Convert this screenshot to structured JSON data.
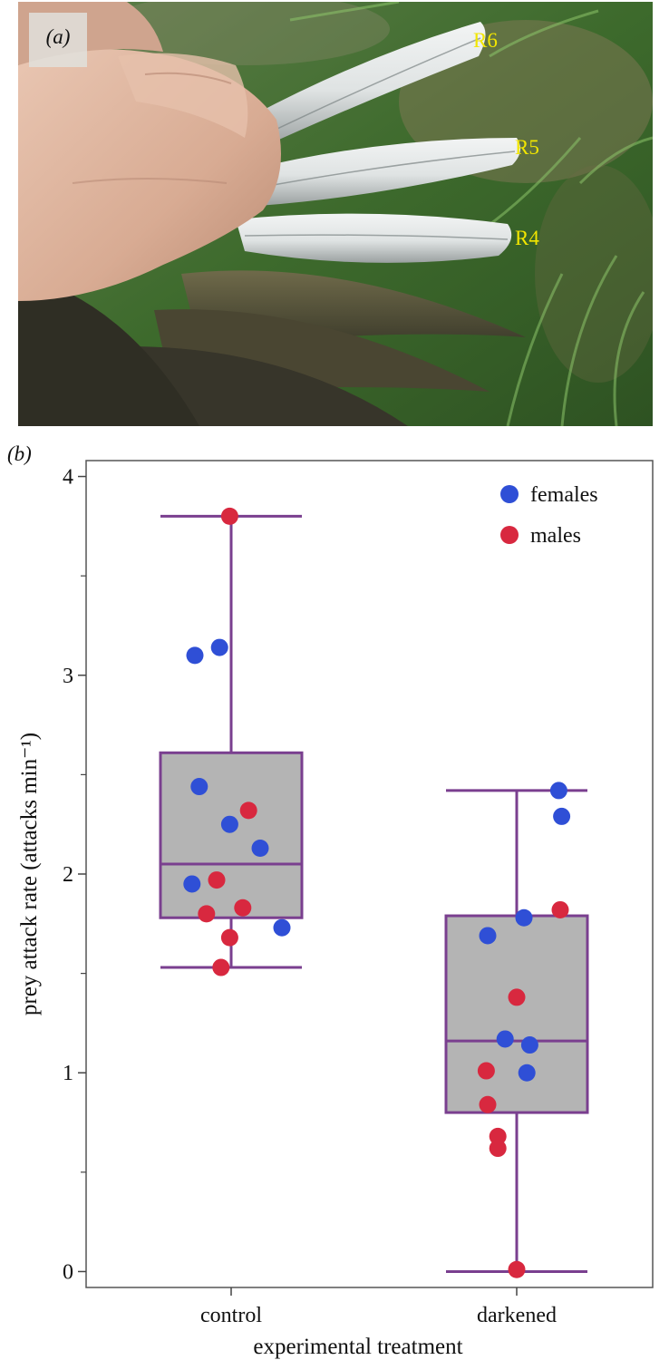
{
  "panel_a": {
    "label": "(a)",
    "feather_labels": [
      "R6",
      "R5",
      "R4"
    ],
    "colors": {
      "grass": "#3f6b2f",
      "skin": "#d9b09a",
      "feather": "#e7eaea",
      "label": "#f2e600"
    }
  },
  "chart_data": {
    "type": "box",
    "panel_label": "(b)",
    "categories": [
      "control",
      "darkened"
    ],
    "xlabel": "experimental treatment",
    "ylabel": "prey attack rate (attacks min⁻¹)",
    "ylim": [
      -0.08,
      4.08
    ],
    "yticks": [
      0,
      1,
      2,
      3,
      4
    ],
    "y_minor_ticks": [
      0.5,
      1.5,
      2.5,
      3.5
    ],
    "legend": {
      "position": "top-right",
      "entries": [
        {
          "name": "females",
          "color": "#2f4fd6"
        },
        {
          "name": "males",
          "color": "#d8283f"
        }
      ]
    },
    "box_color": "#7a3f8f",
    "box_fill": "#b4b4b4",
    "boxes": [
      {
        "category": "control",
        "whisker_low": 1.53,
        "q1": 1.78,
        "median": 2.05,
        "q3": 2.61,
        "whisker_high": 3.8
      },
      {
        "category": "darkened",
        "whisker_low": 0.0,
        "q1": 0.8,
        "median": 1.16,
        "q3": 1.79,
        "whisker_high": 2.42
      }
    ],
    "points": [
      {
        "category": "control",
        "sex": "females",
        "value": 3.1,
        "jitter": -0.25
      },
      {
        "category": "control",
        "sex": "females",
        "value": 3.14,
        "jitter": -0.08
      },
      {
        "category": "control",
        "sex": "females",
        "value": 2.44,
        "jitter": -0.22
      },
      {
        "category": "control",
        "sex": "females",
        "value": 2.25,
        "jitter": -0.01
      },
      {
        "category": "control",
        "sex": "females",
        "value": 2.13,
        "jitter": 0.2
      },
      {
        "category": "control",
        "sex": "females",
        "value": 1.95,
        "jitter": -0.27
      },
      {
        "category": "control",
        "sex": "females",
        "value": 1.73,
        "jitter": 0.35
      },
      {
        "category": "control",
        "sex": "males",
        "value": 3.8,
        "jitter": -0.01
      },
      {
        "category": "control",
        "sex": "males",
        "value": 2.32,
        "jitter": 0.12
      },
      {
        "category": "control",
        "sex": "males",
        "value": 1.97,
        "jitter": -0.1
      },
      {
        "category": "control",
        "sex": "males",
        "value": 1.83,
        "jitter": 0.08
      },
      {
        "category": "control",
        "sex": "males",
        "value": 1.8,
        "jitter": -0.17
      },
      {
        "category": "control",
        "sex": "males",
        "value": 1.68,
        "jitter": -0.01
      },
      {
        "category": "control",
        "sex": "males",
        "value": 1.53,
        "jitter": -0.07
      },
      {
        "category": "darkened",
        "sex": "females",
        "value": 2.42,
        "jitter": 0.29
      },
      {
        "category": "darkened",
        "sex": "females",
        "value": 2.29,
        "jitter": 0.31
      },
      {
        "category": "darkened",
        "sex": "females",
        "value": 1.78,
        "jitter": 0.05
      },
      {
        "category": "darkened",
        "sex": "females",
        "value": 1.69,
        "jitter": -0.2
      },
      {
        "category": "darkened",
        "sex": "females",
        "value": 1.17,
        "jitter": -0.08
      },
      {
        "category": "darkened",
        "sex": "females",
        "value": 1.14,
        "jitter": 0.09
      },
      {
        "category": "darkened",
        "sex": "females",
        "value": 1.0,
        "jitter": 0.07
      },
      {
        "category": "darkened",
        "sex": "males",
        "value": 1.82,
        "jitter": 0.3
      },
      {
        "category": "darkened",
        "sex": "males",
        "value": 1.38,
        "jitter": 0.0
      },
      {
        "category": "darkened",
        "sex": "males",
        "value": 1.01,
        "jitter": -0.21
      },
      {
        "category": "darkened",
        "sex": "males",
        "value": 0.84,
        "jitter": -0.2
      },
      {
        "category": "darkened",
        "sex": "males",
        "value": 0.68,
        "jitter": -0.13
      },
      {
        "category": "darkened",
        "sex": "males",
        "value": 0.62,
        "jitter": -0.13
      },
      {
        "category": "darkened",
        "sex": "males",
        "value": 0.01,
        "jitter": 0.0
      }
    ]
  }
}
